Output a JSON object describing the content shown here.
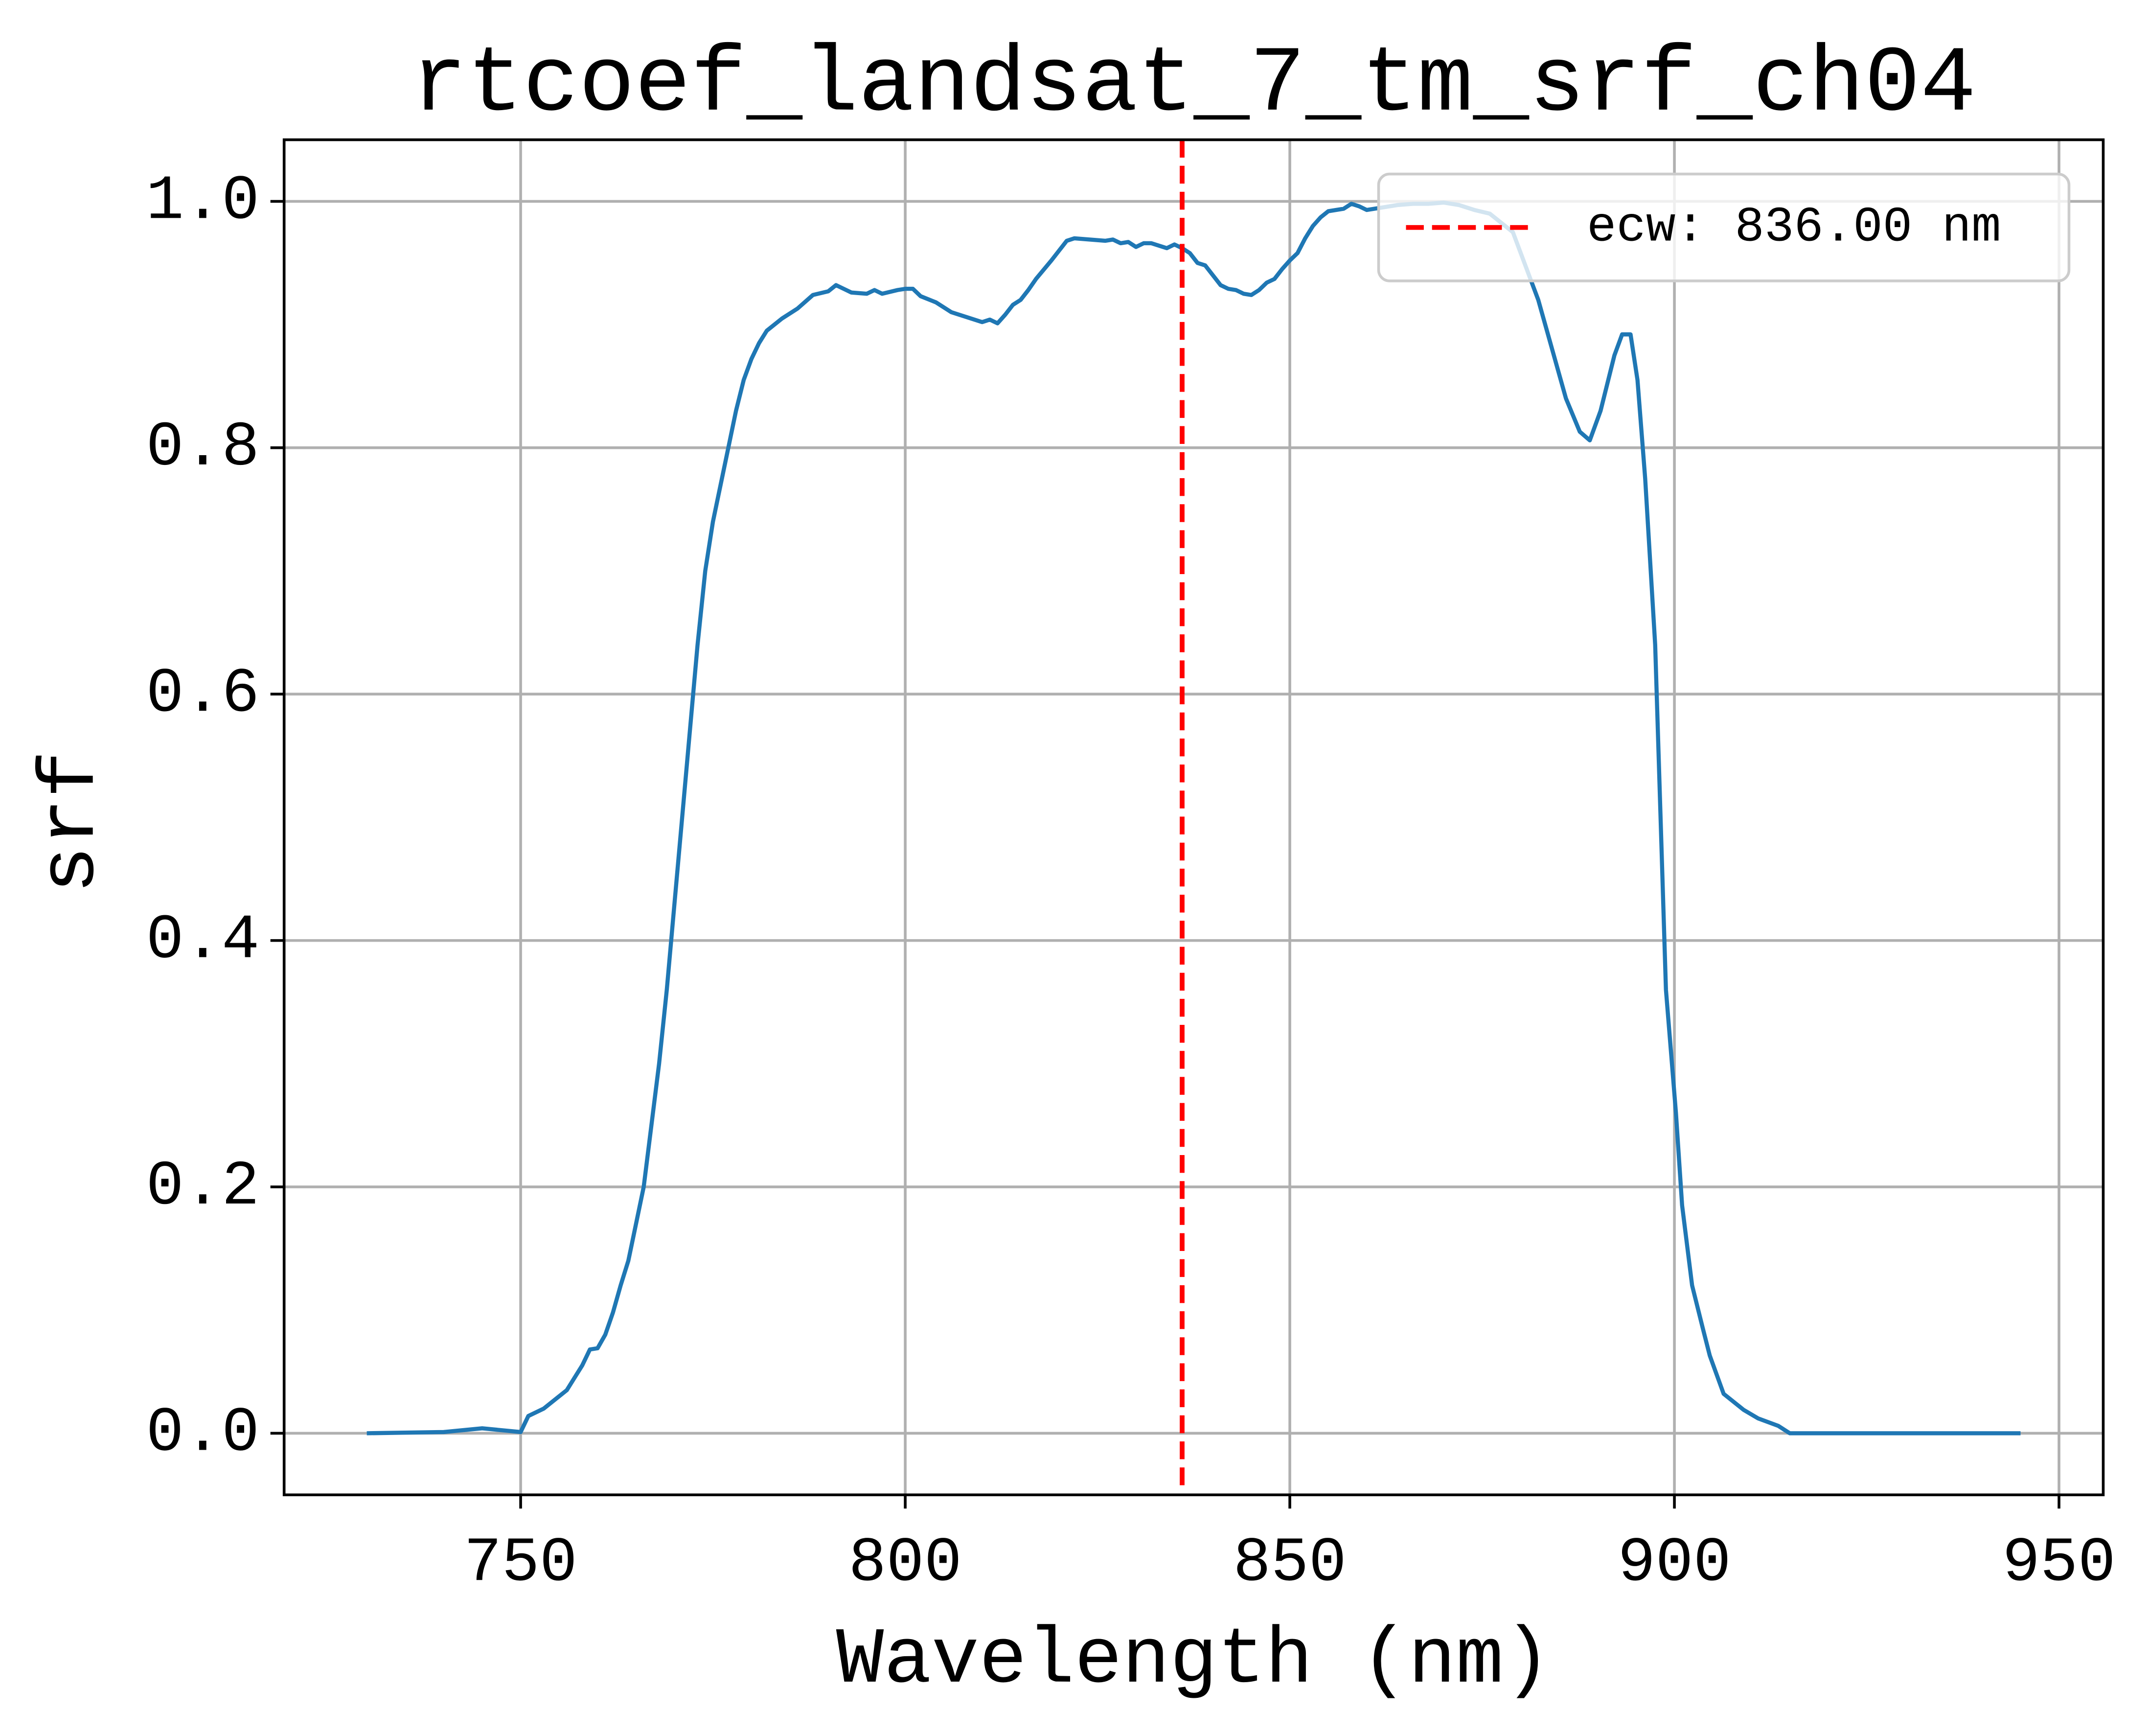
{
  "chart_data": {
    "type": "line",
    "title": "rtcoef_landsat_7_tm_srf_ch04",
    "x_label": "Wavelength (nm)",
    "y_label": "srf",
    "xlim": [
      719.25,
      955.75
    ],
    "ylim": [
      -0.05,
      1.05
    ],
    "xticks": [
      750,
      800,
      850,
      900,
      950
    ],
    "yticks": [
      {
        "value": 0,
        "label": "0.0"
      },
      0.2,
      0.4,
      0.6,
      0.8,
      {
        "value": 1,
        "label": "1.0"
      }
    ],
    "grid": true,
    "color": "#1f77b4",
    "x": [
      730,
      740,
      745,
      750,
      751,
      753,
      755,
      756,
      757,
      758,
      759,
      760,
      761,
      762,
      763,
      764,
      765,
      766,
      767,
      768,
      769,
      770,
      771,
      772,
      773,
      774,
      775,
      776,
      777,
      778,
      779,
      780,
      781,
      782,
      784,
      786,
      788,
      790,
      791,
      792,
      793,
      795,
      796,
      797,
      799,
      800,
      801,
      802,
      804,
      806,
      808,
      810,
      811,
      812,
      813,
      814,
      815,
      816,
      817,
      819,
      820,
      821,
      822,
      824,
      826,
      827,
      828,
      829,
      830,
      831,
      832,
      833,
      834,
      835,
      836,
      837,
      838,
      839,
      840,
      841,
      842,
      843,
      844,
      845,
      846,
      847,
      848,
      849,
      850,
      851,
      852,
      853,
      854,
      855,
      857,
      858,
      859,
      860,
      862,
      864,
      866,
      868,
      870,
      872,
      874,
      876,
      877,
      879,
      882.3,
      885.9,
      887.7,
      889,
      890.4,
      892.2,
      893.2,
      894.3,
      895.2,
      896.2,
      897.5,
      898.9,
      900.2,
      901,
      902.3,
      903.7,
      904.6,
      906.4,
      909,
      910.9,
      913.5,
      915,
      945
    ],
    "values": [
      0,
      0.001,
      0.004,
      0.001,
      0.014,
      0.02,
      0.03,
      0.035,
      0.045,
      0.055,
      0.068,
      0.069,
      0.08,
      0.098,
      0.12,
      0.14,
      0.17,
      0.2,
      0.25,
      0.3,
      0.36,
      0.43,
      0.5,
      0.57,
      0.64,
      0.7,
      0.74,
      0.77,
      0.8,
      0.83,
      0.855,
      0.872,
      0.885,
      0.895,
      0.905,
      0.913,
      0.924,
      0.927,
      0.932,
      0.929,
      0.926,
      0.925,
      0.928,
      0.925,
      0.928,
      0.929,
      0.929,
      0.923,
      0.918,
      0.91,
      0.906,
      0.902,
      0.904,
      0.901,
      0.908,
      0.916,
      0.92,
      0.928,
      0.937,
      0.952,
      0.96,
      0.968,
      0.97,
      0.969,
      0.968,
      0.969,
      0.966,
      0.967,
      0.963,
      0.966,
      0.966,
      0.964,
      0.962,
      0.965,
      0.962,
      0.958,
      0.95,
      0.948,
      0.94,
      0.932,
      0.929,
      0.928,
      0.925,
      0.924,
      0.928,
      0.934,
      0.937,
      0.945,
      0.952,
      0.958,
      0.97,
      0.98,
      0.987,
      0.992,
      0.994,
      0.998,
      0.996,
      0.993,
      0.995,
      0.997,
      0.998,
      0.998,
      0.999,
      0.997,
      0.993,
      0.99,
      0.985,
      0.975,
      0.92,
      0.84,
      0.813,
      0.806,
      0.83,
      0.875,
      0.892,
      0.892,
      0.855,
      0.775,
      0.64,
      0.36,
      0.26,
      0.185,
      0.12,
      0.085,
      0.063,
      0.032,
      0.019,
      0.012,
      0.006,
      0,
      0
    ],
    "vlines": [
      {
        "x": 836,
        "label": "ecw: 836.00 nm",
        "color": "#ff0000"
      }
    ],
    "legend": "upper right"
  }
}
